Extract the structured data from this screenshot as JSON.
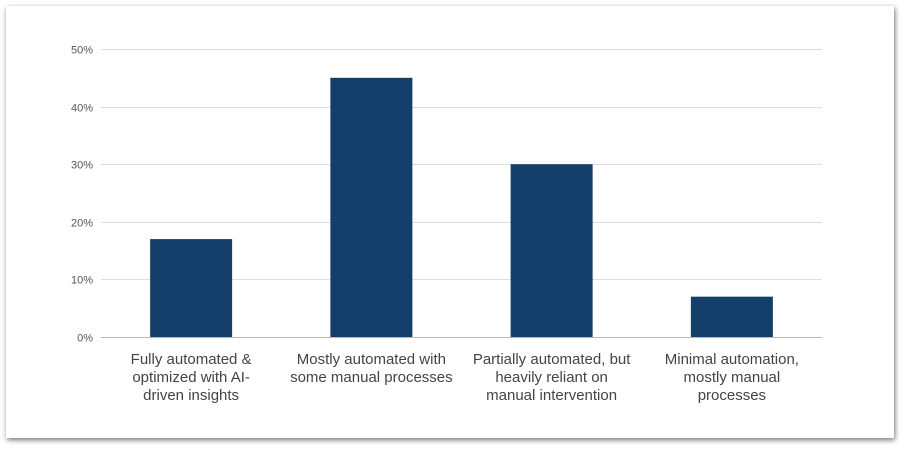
{
  "chart_data": {
    "type": "bar",
    "title": "",
    "xlabel": "",
    "ylabel": "",
    "categories": [
      [
        "Fully automated &",
        "optimized with AI-",
        "driven insights"
      ],
      [
        "Mostly automated with",
        "some manual processes"
      ],
      [
        "Partially automated, but",
        "heavily reliant on",
        "manual intervention"
      ],
      [
        "Minimal automation,",
        "mostly manual",
        "processes"
      ]
    ],
    "values": [
      17,
      45,
      30,
      7
    ],
    "ylim": [
      0,
      50
    ],
    "yticks": [
      0,
      10,
      20,
      30,
      40,
      50
    ],
    "ytick_labels": [
      "0%",
      "10%",
      "20%",
      "30%",
      "40%",
      "50%"
    ],
    "grid": true,
    "legend": "none",
    "colors": {
      "bar": "#143f6b"
    }
  }
}
